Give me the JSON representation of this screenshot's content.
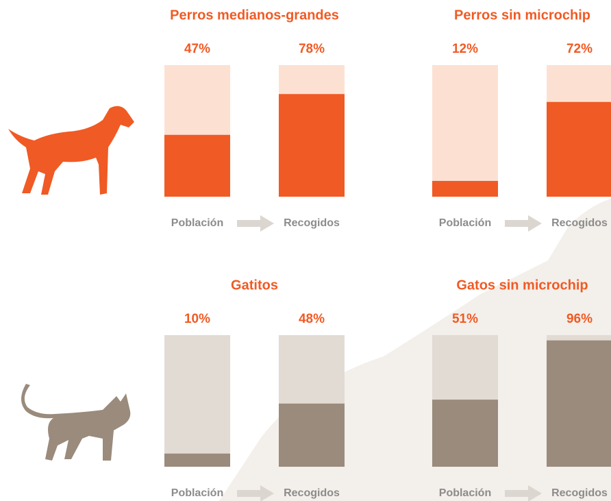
{
  "chart_data": [
    {
      "type": "bar",
      "title": "Perros medianos-grandes",
      "categories": [
        "Población",
        "Recogidos"
      ],
      "values": [
        47,
        78
      ],
      "value_labels": [
        "47%",
        "78%"
      ],
      "ylim": [
        0,
        100
      ],
      "color": "#f05a24",
      "track_color": "#fce1d3",
      "label_color": "#f05a24"
    },
    {
      "type": "bar",
      "title": "Perros sin microchip",
      "categories": [
        "Población",
        "Recogidos"
      ],
      "values": [
        12,
        72
      ],
      "value_labels": [
        "12%",
        "72%"
      ],
      "ylim": [
        0,
        100
      ],
      "color": "#f05a24",
      "track_color": "#fce1d3",
      "label_color": "#f05a24"
    },
    {
      "type": "bar",
      "title": "Gatitos",
      "categories": [
        "Población",
        "Recogidos"
      ],
      "values": [
        10,
        48
      ],
      "value_labels": [
        "10%",
        "48%"
      ],
      "ylim": [
        0,
        100
      ],
      "color": "#9a8b7c",
      "track_color": "#e2dbd4",
      "label_color": "#f05a24"
    },
    {
      "type": "bar",
      "title": "Gatos sin microchip",
      "categories": [
        "Población",
        "Recogidos"
      ],
      "values": [
        51,
        96
      ],
      "value_labels": [
        "51%",
        "96%"
      ],
      "ylim": [
        0,
        100
      ],
      "color": "#9a8b7c",
      "track_color": "#e2dbd4",
      "label_color": "#f05a24"
    }
  ]
}
